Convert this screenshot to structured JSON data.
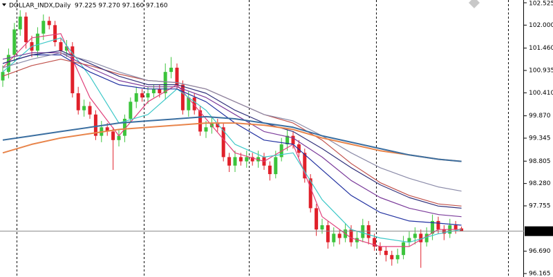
{
  "chart_data": {
    "type": "candlestick",
    "title": "DOLLAR_INDX,Daily",
    "quote": "97.225 97.270 97.160 97.160",
    "ylim": [
      96.165,
      102.525
    ],
    "yticks": [
      102.525,
      {
        "value": 102.0,
        "label": "102.000"
      },
      {
        "value": 101.46,
        "label": "101.460"
      },
      100.935,
      {
        "value": 100.41,
        "label": "100.410"
      },
      {
        "value": 99.87,
        "label": "99.870"
      },
      99.345,
      98.805,
      {
        "value": 98.28,
        "label": "98.280"
      },
      97.755,
      {
        "value": 96.69,
        "label": "96.690"
      },
      96.165
    ],
    "current_price": {
      "value": 97.16,
      "label": "97.160"
    },
    "up_color": "#3cc43c",
    "down_color": "#e0202a",
    "open": [
      100.7,
      100.9,
      101.3,
      101.9,
      102.2,
      101.6,
      101.4,
      101.8,
      102.1,
      102.0,
      101.6,
      101.4,
      101.5,
      100.4,
      100.0,
      100.1,
      99.9,
      99.4,
      99.6,
      99.5,
      99.3,
      99.4,
      99.8,
      100.2,
      100.4,
      100.3,
      100.4,
      100.5,
      100.4,
      100.9,
      101.0,
      100.6,
      100.0,
      100.3,
      100.0,
      99.5,
      99.6,
      99.7,
      99.6,
      98.9,
      98.7,
      98.9,
      98.8,
      98.9,
      98.8,
      98.9,
      98.7,
      98.5,
      98.9,
      99.2,
      99.4,
      99.2,
      99.0,
      98.4,
      97.7,
      97.2,
      97.3,
      96.9,
      97.1,
      97.0,
      97.2,
      96.9,
      97.0,
      97.3,
      97.0,
      96.8,
      96.7,
      96.6,
      96.5,
      96.6,
      96.9,
      97.0,
      97.1,
      96.9,
      97.1,
      97.4,
      97.2,
      97.1,
      97.3,
      97.225
    ],
    "high": [
      101.05,
      101.45,
      102.05,
      102.35,
      102.3,
      101.75,
      101.95,
      102.25,
      102.2,
      102.1,
      101.7,
      101.65,
      101.6,
      100.55,
      100.25,
      100.2,
      100.0,
      99.75,
      99.7,
      99.6,
      99.55,
      99.9,
      100.3,
      100.55,
      100.5,
      100.55,
      100.6,
      100.6,
      101.1,
      101.25,
      101.1,
      100.7,
      100.45,
      100.4,
      100.1,
      99.75,
      99.85,
      99.8,
      99.7,
      99.0,
      99.05,
      99.0,
      99.05,
      99.0,
      99.05,
      99.0,
      98.8,
      99.05,
      99.35,
      99.55,
      99.5,
      99.3,
      99.1,
      98.5,
      97.8,
      97.45,
      97.4,
      97.25,
      97.2,
      97.35,
      97.3,
      97.15,
      97.45,
      97.4,
      97.1,
      96.9,
      96.8,
      96.7,
      96.75,
      97.05,
      97.15,
      97.25,
      97.2,
      97.25,
      97.55,
      97.5,
      97.3,
      97.45,
      97.4,
      97.27
    ],
    "low": [
      100.55,
      100.75,
      101.15,
      101.75,
      101.45,
      101.25,
      101.25,
      101.65,
      101.9,
      101.5,
      101.3,
      101.25,
      100.3,
      99.9,
      99.85,
      99.8,
      99.3,
      99.25,
      99.4,
      98.6,
      99.15,
      99.25,
      99.7,
      100.05,
      100.2,
      100.15,
      100.3,
      100.3,
      100.25,
      100.75,
      100.5,
      99.9,
      99.85,
      99.9,
      99.4,
      99.35,
      99.45,
      99.5,
      98.8,
      98.55,
      98.55,
      98.7,
      98.65,
      98.7,
      98.65,
      98.6,
      98.35,
      98.4,
      98.8,
      99.05,
      99.1,
      98.9,
      98.3,
      97.6,
      97.05,
      97.1,
      96.75,
      96.8,
      96.85,
      96.9,
      96.8,
      96.75,
      96.9,
      96.85,
      96.7,
      96.6,
      96.45,
      96.35,
      96.4,
      96.5,
      96.8,
      96.85,
      96.3,
      96.8,
      96.95,
      97.1,
      96.95,
      97.0,
      97.1,
      97.16
    ],
    "close": [
      100.9,
      101.3,
      101.9,
      102.2,
      101.6,
      101.4,
      101.8,
      102.1,
      102.0,
      101.6,
      101.4,
      101.5,
      100.4,
      100.0,
      100.1,
      99.9,
      99.4,
      99.6,
      99.5,
      99.3,
      99.4,
      99.8,
      100.2,
      100.4,
      100.3,
      100.4,
      100.5,
      100.4,
      100.9,
      101.0,
      100.6,
      100.0,
      100.3,
      100.0,
      99.5,
      99.6,
      99.7,
      99.6,
      98.9,
      98.7,
      98.9,
      98.8,
      98.9,
      98.8,
      98.9,
      98.7,
      98.5,
      98.9,
      99.2,
      99.4,
      99.2,
      99.0,
      98.4,
      97.7,
      97.2,
      97.3,
      96.9,
      97.1,
      97.0,
      97.2,
      96.9,
      97.0,
      97.3,
      97.0,
      96.8,
      96.7,
      96.6,
      96.5,
      96.6,
      96.9,
      97.0,
      97.1,
      96.9,
      97.1,
      97.4,
      97.2,
      97.1,
      97.3,
      97.2,
      97.16
    ],
    "lines": [
      {
        "color": "#e0407a",
        "x": [
          0,
          5,
          10,
          15,
          20,
          25,
          30,
          35,
          40,
          45,
          50,
          55,
          60,
          65,
          70,
          75,
          79
        ],
        "values": [
          101.0,
          101.7,
          101.8,
          100.3,
          99.4,
          100.2,
          100.6,
          99.8,
          99.0,
          98.8,
          99.2,
          97.5,
          97.0,
          96.8,
          96.8,
          97.2,
          97.2
        ]
      },
      {
        "color": "#3cc8c8",
        "x": [
          0,
          5,
          10,
          15,
          20,
          25,
          30,
          35,
          40,
          45,
          50,
          55,
          60,
          65,
          70,
          75,
          79
        ],
        "values": [
          100.9,
          101.5,
          101.7,
          100.8,
          99.7,
          99.9,
          100.5,
          100.0,
          99.2,
          98.9,
          99.0,
          97.9,
          97.2,
          97.0,
          96.9,
          97.1,
          97.2
        ]
      },
      {
        "color": "#2030a0",
        "x": [
          0,
          5,
          10,
          15,
          20,
          25,
          30,
          35,
          40,
          45,
          50,
          55,
          60,
          65,
          70,
          75,
          79
        ],
        "values": [
          101.1,
          101.3,
          101.3,
          100.9,
          100.6,
          100.5,
          100.5,
          100.2,
          99.7,
          99.3,
          99.2,
          98.6,
          98.0,
          97.6,
          97.4,
          97.35,
          97.3
        ]
      },
      {
        "color": "#7a3a9a",
        "x": [
          0,
          5,
          10,
          15,
          20,
          25,
          30,
          35,
          40,
          45,
          50,
          55,
          60,
          65,
          70,
          75,
          79
        ],
        "values": [
          101.2,
          101.35,
          101.35,
          101.0,
          100.7,
          100.55,
          100.55,
          100.3,
          99.9,
          99.5,
          99.35,
          98.9,
          98.35,
          97.95,
          97.7,
          97.55,
          97.5
        ]
      },
      {
        "color": "#c0504a",
        "x": [
          0,
          5,
          10,
          15,
          20,
          25,
          30,
          35,
          40,
          45,
          50,
          55,
          60,
          65,
          70,
          75,
          79
        ],
        "values": [
          100.8,
          101.05,
          101.2,
          101.05,
          100.85,
          100.7,
          100.65,
          100.5,
          100.2,
          99.9,
          99.7,
          99.3,
          98.75,
          98.3,
          98.0,
          97.8,
          97.75
        ]
      },
      {
        "color": "#30307a",
        "x": [
          0,
          5,
          10,
          15,
          20,
          25,
          30,
          35,
          40,
          45,
          50,
          55,
          60,
          65,
          70,
          75,
          79
        ],
        "values": [
          101.1,
          101.3,
          101.4,
          101.1,
          100.8,
          100.6,
          100.6,
          100.4,
          100.0,
          99.7,
          99.5,
          99.1,
          98.65,
          98.25,
          97.95,
          97.75,
          97.7
        ]
      },
      {
        "color": "#8a8aa8",
        "x": [
          0,
          5,
          10,
          15,
          20,
          25,
          30,
          35,
          40,
          45,
          50,
          55,
          60,
          65,
          70,
          75,
          79
        ],
        "values": [
          101.0,
          101.2,
          101.35,
          101.15,
          100.9,
          100.7,
          100.65,
          100.5,
          100.2,
          99.9,
          99.75,
          99.4,
          99.0,
          98.65,
          98.4,
          98.2,
          98.1
        ]
      },
      {
        "color": "#e8844a",
        "x": [
          0,
          5,
          10,
          15,
          20,
          25,
          30,
          35,
          40,
          45,
          50,
          55,
          60,
          65,
          70,
          75,
          79
        ],
        "values": [
          99.0,
          99.2,
          99.35,
          99.45,
          99.55,
          99.6,
          99.65,
          99.7,
          99.7,
          99.65,
          99.55,
          99.35,
          99.2,
          99.05,
          98.95,
          98.85,
          98.8
        ]
      },
      {
        "color": "#3a6ea0",
        "x": [
          0,
          5,
          10,
          15,
          20,
          25,
          30,
          35,
          40,
          45,
          50,
          55,
          60,
          65,
          70,
          75,
          79
        ],
        "values": [
          99.3,
          99.4,
          99.5,
          99.6,
          99.7,
          99.75,
          99.8,
          99.85,
          99.8,
          99.7,
          99.6,
          99.4,
          99.25,
          99.1,
          98.95,
          98.85,
          98.8
        ]
      }
    ]
  }
}
